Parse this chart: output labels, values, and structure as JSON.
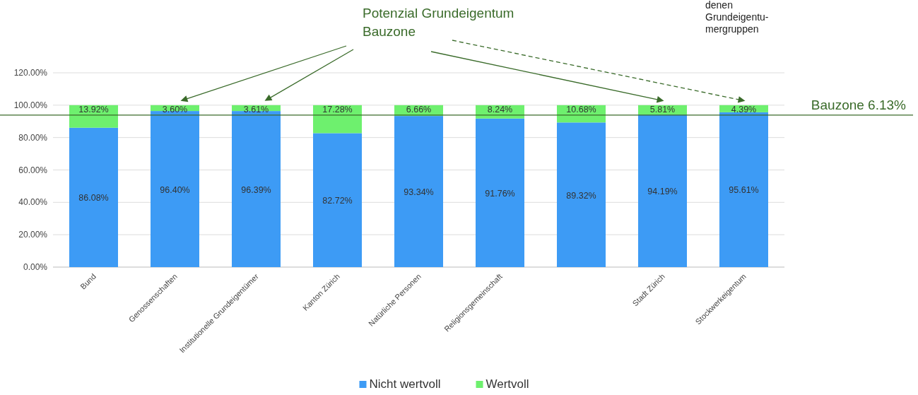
{
  "chart_data": {
    "type": "bar",
    "stacked": true,
    "categories": [
      "Bund",
      "Genossenschaften",
      "Institutionelle Grundeigentümer",
      "Kanton Zürich",
      "Natürliche Personen",
      "Religionsgemeinschaft",
      null,
      "Stadt Zürich",
      "Stockwerkeigentum"
    ],
    "series": [
      {
        "name": "Nicht wertvoll",
        "color": "#3d9bf5",
        "values": [
          86.08,
          96.4,
          96.39,
          82.72,
          93.34,
          91.76,
          89.32,
          94.19,
          95.61
        ],
        "value_labels": [
          "86.08%",
          "96.40%",
          "96.39%",
          "82.72%",
          "93.34%",
          "91.76%",
          "89.32%",
          "94.19%",
          "95.61%"
        ]
      },
      {
        "name": "Wertvoll",
        "color": "#6ef06e",
        "values": [
          13.92,
          3.6,
          3.61,
          17.28,
          6.66,
          8.24,
          10.68,
          5.81,
          4.39
        ],
        "value_labels": [
          "13.92%",
          "3.60%",
          "3.61%",
          "17.28%",
          "6.66%",
          "8.24%",
          "10.68%",
          "5.81%",
          "4.39%"
        ]
      }
    ],
    "ylim": [
      0,
      120
    ],
    "yticks": [
      {
        "value": 0,
        "label": "0.00%"
      },
      {
        "value": 20,
        "label": "20.00%"
      },
      {
        "value": 40,
        "label": "40.00%"
      },
      {
        "value": 60,
        "label": "60.00%"
      },
      {
        "value": 80,
        "label": "80.00%"
      },
      {
        "value": 100,
        "label": "100.00%"
      },
      {
        "value": 120,
        "label": "120.00%"
      }
    ],
    "grid": "y",
    "legend": "bottom",
    "ref_lines": [
      {
        "axis": "y",
        "value": 93.87,
        "label": "Bauzone 6.13%",
        "color": "#3a6b2a"
      }
    ],
    "annotations": [
      "Potenzial Grundeigentum Bauzone",
      "denen Grundeigentu- mergruppen"
    ]
  }
}
